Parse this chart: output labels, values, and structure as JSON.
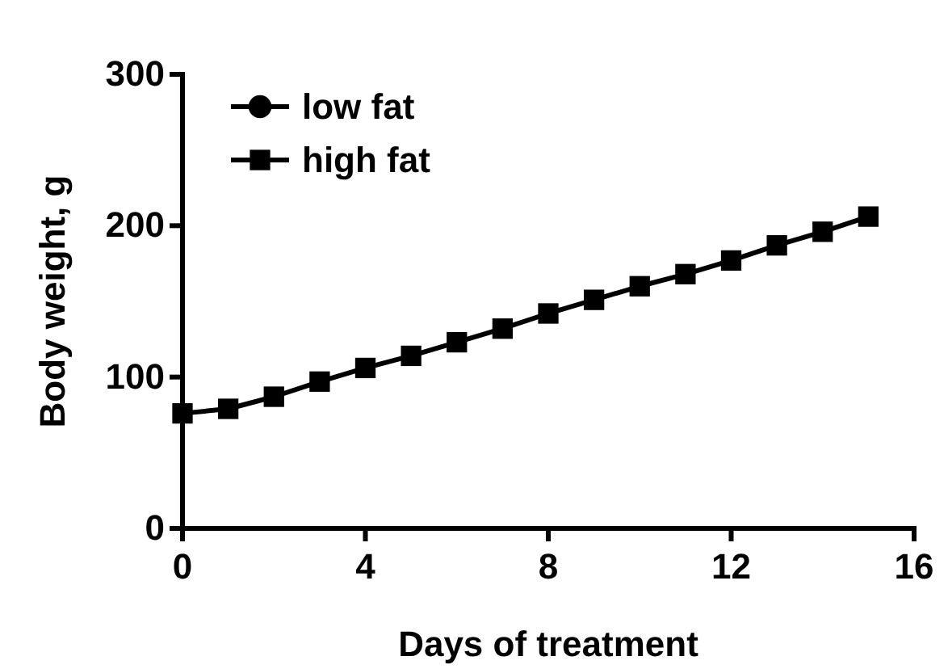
{
  "chart_data": {
    "type": "line",
    "xlabel": "Days of treatment",
    "ylabel": "Body weight, g",
    "x": [
      0,
      1,
      2,
      3,
      4,
      5,
      6,
      7,
      8,
      9,
      10,
      11,
      12,
      13,
      14,
      15
    ],
    "xlim": [
      0,
      16
    ],
    "xticks": [
      0,
      4,
      8,
      12,
      16
    ],
    "ylim": [
      0,
      300
    ],
    "yticks": [
      0,
      100,
      200,
      300
    ],
    "grid": false,
    "legend": "top left",
    "line_style": "solid",
    "series": [
      {
        "name": "low fat",
        "color": "#000000",
        "marker": "circle",
        "values": [
          null,
          null,
          null,
          null,
          null,
          null,
          null,
          null,
          null,
          null,
          null,
          null,
          null,
          null,
          null,
          null
        ]
      },
      {
        "name": "high fat",
        "color": "#000000",
        "marker": "square",
        "values": [
          76,
          79,
          87,
          97,
          106,
          114,
          123,
          132,
          142,
          151,
          160,
          168,
          177,
          187,
          196,
          206
        ]
      }
    ]
  }
}
